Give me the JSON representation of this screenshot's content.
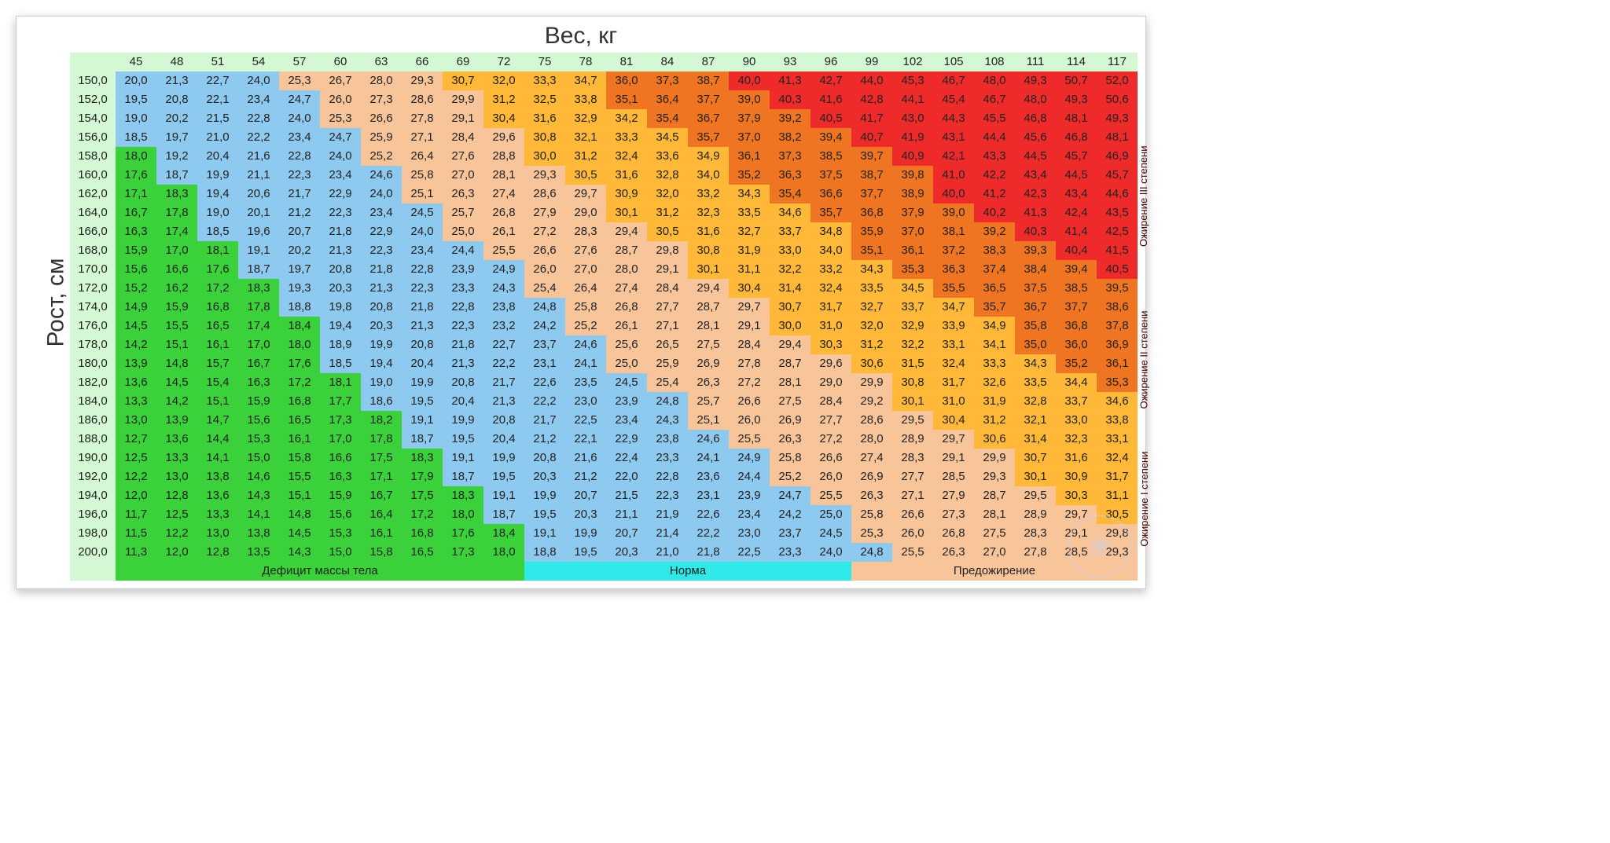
{
  "chart": {
    "type": "heatmap-table",
    "x_title": "Вес, кг",
    "y_title": "Рост, см",
    "header_bg": "#d4f7d4",
    "text_color": "#222222",
    "font_family": "Arial",
    "cell_fontsize": 15,
    "title_fontsize": 30,
    "weights": [
      45,
      48,
      51,
      54,
      57,
      60,
      63,
      66,
      69,
      72,
      75,
      78,
      81,
      84,
      87,
      90,
      93,
      96,
      99,
      102,
      105,
      108,
      111,
      114,
      117
    ],
    "heights": [
      150.0,
      152.0,
      154.0,
      156.0,
      158.0,
      160.0,
      162.0,
      164.0,
      166.0,
      168.0,
      170.0,
      172.0,
      174.0,
      176.0,
      178.0,
      180.0,
      182.0,
      184.0,
      186.0,
      188.0,
      190.0,
      192.0,
      194.0,
      196.0,
      198.0,
      200.0
    ],
    "decimal_sep": ",",
    "categories": {
      "deficit": {
        "label": "Дефицит массы тела",
        "color": "#3bd13b",
        "max": 18.49
      },
      "normal": {
        "label": "Норма",
        "color": "#8ec9f0",
        "max": 24.99,
        "legend_color": "#2fe8e8"
      },
      "preobese": {
        "label": "Предожирение",
        "color": "#f8c49a",
        "max": 29.99
      },
      "obese1": {
        "label": "Ожирение I степени",
        "color": "#ffb838",
        "max": 34.99
      },
      "obese2": {
        "label": "Ожирение II степени",
        "color": "#f07522",
        "max": 39.99
      },
      "obese3": {
        "label": "Ожирение III степени",
        "color": "#ef2a2a",
        "max": 999
      }
    },
    "legend_bottom": [
      {
        "key": "deficit",
        "span": 10
      },
      {
        "key": "normal",
        "span": 8
      },
      {
        "key": "preobese",
        "span": 8
      }
    ],
    "side_labels": [
      {
        "key": "obese3",
        "top_pct": 14
      },
      {
        "key": "obese2",
        "top_pct": 48
      },
      {
        "key": "obese1",
        "top_pct": 77
      }
    ]
  }
}
